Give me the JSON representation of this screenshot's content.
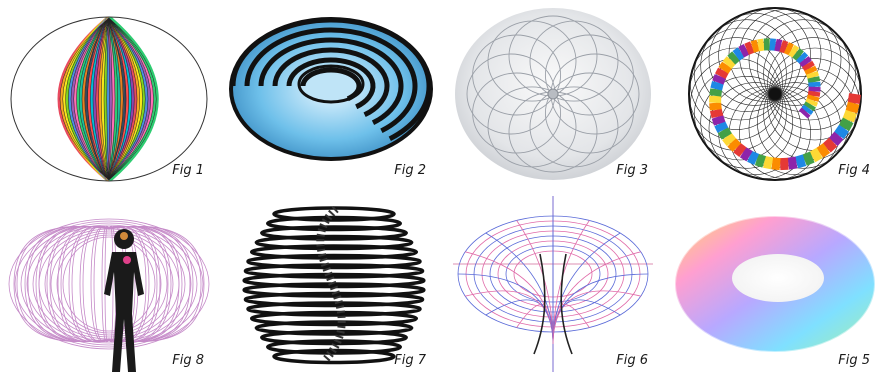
{
  "figures": {
    "fig1": {
      "caption": "Fig 1"
    },
    "fig2": {
      "caption": "Fig 2"
    },
    "fig3": {
      "caption": "Fig 3"
    },
    "fig4": {
      "caption": "Fig 4"
    },
    "fig5": {
      "caption": "Fig 5"
    },
    "fig6": {
      "caption": "Fig 6"
    },
    "fig7": {
      "caption": "Fig 7"
    },
    "fig8": {
      "caption": "Fig 8"
    }
  }
}
